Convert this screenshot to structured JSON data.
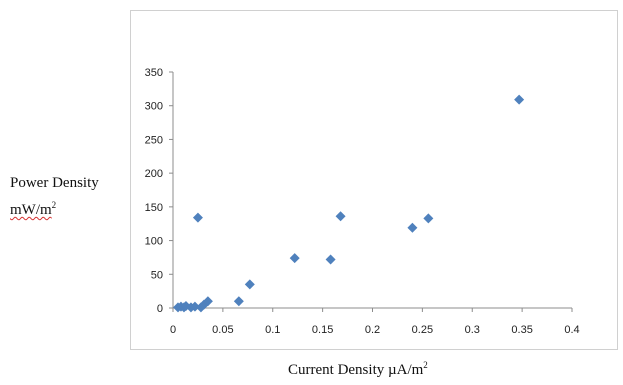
{
  "chart_data": {
    "type": "scatter",
    "title": "",
    "xlabel": "Current Density µA/m2",
    "ylabel_line1": "Power Density",
    "ylabel_line2": "mW/m2",
    "ylabel_unit": "mW/m",
    "ylabel_sup": "2",
    "xlabel_text": "Current Density µA/m",
    "xlabel_sup": "2",
    "xlim": [
      0,
      0.4
    ],
    "ylim": [
      0,
      350
    ],
    "xticks": [
      "0",
      "0.05",
      "0.1",
      "0.15",
      "0.2",
      "0.25",
      "0.3",
      "0.35",
      "0.4"
    ],
    "yticks": [
      "0",
      "50",
      "100",
      "150",
      "200",
      "250",
      "300",
      "350"
    ],
    "xtick_values": [
      0,
      0.05,
      0.1,
      0.15,
      0.2,
      0.25,
      0.3,
      0.35,
      0.4
    ],
    "ytick_values": [
      0,
      50,
      100,
      150,
      200,
      250,
      300,
      350
    ],
    "grid": false,
    "legend": "none",
    "marker": "diamond",
    "color": "#4f81bd",
    "points": [
      {
        "x": 0.005,
        "y": 1
      },
      {
        "x": 0.008,
        "y": 2
      },
      {
        "x": 0.011,
        "y": 1
      },
      {
        "x": 0.013,
        "y": 3
      },
      {
        "x": 0.018,
        "y": 1
      },
      {
        "x": 0.022,
        "y": 2
      },
      {
        "x": 0.025,
        "y": 134
      },
      {
        "x": 0.028,
        "y": 1
      },
      {
        "x": 0.031,
        "y": 5
      },
      {
        "x": 0.035,
        "y": 10
      },
      {
        "x": 0.066,
        "y": 10
      },
      {
        "x": 0.077,
        "y": 35
      },
      {
        "x": 0.122,
        "y": 74
      },
      {
        "x": 0.158,
        "y": 72
      },
      {
        "x": 0.168,
        "y": 136
      },
      {
        "x": 0.24,
        "y": 119
      },
      {
        "x": 0.256,
        "y": 133
      },
      {
        "x": 0.347,
        "y": 309
      }
    ]
  }
}
